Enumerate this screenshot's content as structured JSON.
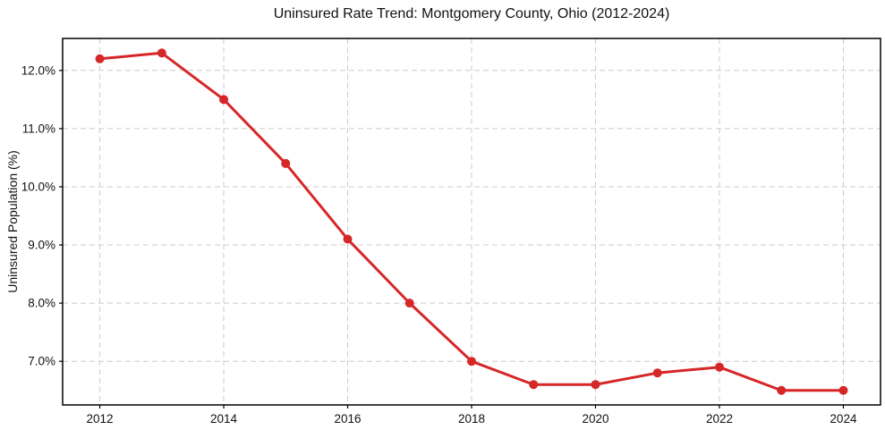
{
  "chart_data": {
    "type": "line",
    "title": "Uninsured Rate Trend: Montgomery County, Ohio (2012-2024)",
    "xlabel": "",
    "ylabel": "Uninsured Population (%)",
    "x": [
      2012,
      2013,
      2014,
      2015,
      2016,
      2017,
      2018,
      2019,
      2020,
      2021,
      2022,
      2023,
      2024
    ],
    "values": [
      12.2,
      12.3,
      11.5,
      10.4,
      9.1,
      8.0,
      7.0,
      6.6,
      6.6,
      6.8,
      6.9,
      6.5,
      6.5
    ],
    "xticks": [
      2012,
      2014,
      2016,
      2018,
      2020,
      2022,
      2024
    ],
    "xtick_labels": [
      "2012",
      "2014",
      "2016",
      "2018",
      "2020",
      "2022",
      "2024"
    ],
    "yticks": [
      7.0,
      8.0,
      9.0,
      10.0,
      11.0,
      12.0
    ],
    "ytick_labels": [
      "7.0%",
      "8.0%",
      "9.0%",
      "10.0%",
      "11.0%",
      "12.0%"
    ],
    "xlim": [
      2011.4,
      2024.6
    ],
    "ylim": [
      6.25,
      12.55
    ],
    "grid": true,
    "legend": "none",
    "line_color": "#d62728",
    "marker": "circle",
    "marker_size": 5,
    "line_width": 3,
    "grid_color": "#cccccc",
    "axis_color": "#000000",
    "tick_label_color": "#111111",
    "background": "#ffffff"
  }
}
